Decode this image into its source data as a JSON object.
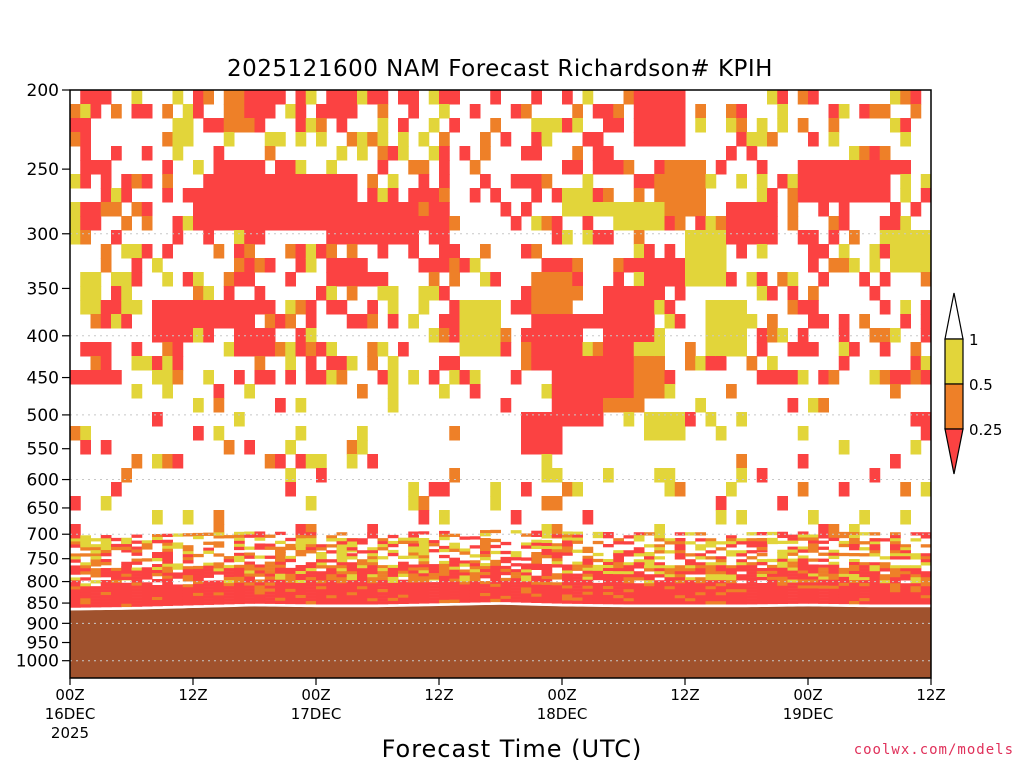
{
  "chart_data": {
    "type": "heatmap",
    "title": "2025121600 NAM Forecast Richardson# KPIH",
    "xlabel": "Forecast Time (UTC)",
    "ylabel": "",
    "y_axis": {
      "scale": "log",
      "inverted": true,
      "range": [
        1050,
        200
      ],
      "ticks": [
        200,
        250,
        300,
        350,
        400,
        450,
        500,
        550,
        600,
        650,
        700,
        750,
        800,
        850,
        900,
        950,
        1000
      ],
      "dotted_gridlines": [
        300,
        400,
        500,
        600,
        700,
        800,
        900,
        1000
      ]
    },
    "x_axis": {
      "range_hours": [
        0,
        84
      ],
      "ticks": [
        {
          "hour": 0,
          "label": "00Z",
          "sub": "16DEC",
          "sub2": "2025"
        },
        {
          "hour": 12,
          "label": "12Z",
          "sub": "",
          "sub2": ""
        },
        {
          "hour": 24,
          "label": "00Z",
          "sub": "17DEC",
          "sub2": ""
        },
        {
          "hour": 36,
          "label": "12Z",
          "sub": "",
          "sub2": ""
        },
        {
          "hour": 48,
          "label": "00Z",
          "sub": "18DEC",
          "sub2": ""
        },
        {
          "hour": 60,
          "label": "12Z",
          "sub": "",
          "sub2": ""
        },
        {
          "hour": 72,
          "label": "00Z",
          "sub": "19DEC",
          "sub2": ""
        },
        {
          "hour": 84,
          "label": "12Z",
          "sub": "",
          "sub2": ""
        }
      ]
    },
    "colorbar": {
      "levels": [
        "1",
        "0.5",
        "0.25"
      ],
      "colors": {
        "above_1": "#ffffff",
        "between_0.5_1": "#e2d53a",
        "between_0.25_0.5": "#ee8028",
        "below_0.25": "#fb4242"
      }
    },
    "ground_color": "#a0522d",
    "surface_pressure_by_hour": [
      {
        "hour": 0,
        "p": 868
      },
      {
        "hour": 6,
        "p": 866
      },
      {
        "hour": 12,
        "p": 862
      },
      {
        "hour": 18,
        "p": 858
      },
      {
        "hour": 24,
        "p": 860
      },
      {
        "hour": 30,
        "p": 860
      },
      {
        "hour": 36,
        "p": 857
      },
      {
        "hour": 42,
        "p": 854
      },
      {
        "hour": 48,
        "p": 858
      },
      {
        "hour": 54,
        "p": 860
      },
      {
        "hour": 60,
        "p": 860
      },
      {
        "hour": 66,
        "p": 860
      },
      {
        "hour": 72,
        "p": 858
      },
      {
        "hour": 78,
        "p": 860
      },
      {
        "hour": 84,
        "p": 860
      }
    ],
    "regions": [
      {
        "cat": "red",
        "h": [
          9,
          18
        ],
        "p": [
          355,
          395
        ]
      },
      {
        "cat": "red",
        "h": [
          12,
          22
        ],
        "p": [
          265,
          300
        ]
      },
      {
        "cat": "red",
        "h": [
          14,
          19
        ],
        "p": [
          245,
          260
        ]
      },
      {
        "cat": "red",
        "h": [
          21,
          28
        ],
        "p": [
          250,
          295
        ]
      },
      {
        "cat": "red",
        "h": [
          26,
          34
        ],
        "p": [
          270,
          310
        ]
      },
      {
        "cat": "red",
        "h": [
          25,
          29
        ],
        "p": [
          320,
          350
        ]
      },
      {
        "cat": "red",
        "h": [
          16,
          20
        ],
        "p": [
          390,
          420
        ]
      },
      {
        "cat": "red",
        "h": [
          8,
          12
        ],
        "p": [
          370,
          400
        ]
      },
      {
        "cat": "red",
        "h": [
          45,
          50
        ],
        "p": [
          380,
          440
        ]
      },
      {
        "cat": "red",
        "h": [
          47,
          52
        ],
        "p": [
          430,
          520
        ]
      },
      {
        "cat": "red",
        "h": [
          52,
          57
        ],
        "p": [
          350,
          400
        ]
      },
      {
        "cat": "red",
        "h": [
          55,
          60
        ],
        "p": [
          200,
          230
        ]
      },
      {
        "cat": "red",
        "h": [
          56,
          60
        ],
        "p": [
          320,
          350
        ]
      },
      {
        "cat": "red",
        "h": [
          64,
          69
        ],
        "p": [
          270,
          310
        ]
      },
      {
        "cat": "red",
        "h": [
          71,
          80
        ],
        "p": [
          245,
          270
        ]
      },
      {
        "cat": "red",
        "h": [
          44,
          48
        ],
        "p": [
          500,
          550
        ]
      },
      {
        "cat": "red",
        "h": [
          25,
          28
        ],
        "p": [
          200,
          220
        ]
      },
      {
        "cat": "red",
        "h": [
          17,
          20
        ],
        "p": [
          200,
          215
        ]
      },
      {
        "cat": "red",
        "h": [
          1,
          3
        ],
        "p": [
          275,
          300
        ]
      },
      {
        "cat": "red",
        "h": [
          52,
          55
        ],
        "p": [
          400,
          470
        ]
      },
      {
        "cat": "red",
        "h": [
          82,
          84
        ],
        "p": [
          490,
          510
        ]
      },
      {
        "cat": "orange",
        "h": [
          45,
          49
        ],
        "p": [
          340,
          380
        ]
      },
      {
        "cat": "orange",
        "h": [
          50,
          56
        ],
        "p": [
          420,
          500
        ]
      },
      {
        "cat": "orange",
        "h": [
          53,
          58
        ],
        "p": [
          420,
          470
        ]
      },
      {
        "cat": "orange",
        "h": [
          15,
          18
        ],
        "p": [
          200,
          225
        ]
      },
      {
        "cat": "orange",
        "h": [
          58,
          62
        ],
        "p": [
          240,
          280
        ]
      },
      {
        "cat": "orange",
        "h": [
          23,
          26
        ],
        "p": [
          280,
          300
        ]
      },
      {
        "cat": "orange",
        "h": [
          44,
          47
        ],
        "p": [
          400,
          440
        ]
      },
      {
        "cat": "yellow",
        "h": [
          53,
          58
        ],
        "p": [
          270,
          300
        ]
      },
      {
        "cat": "yellow",
        "h": [
          56,
          60
        ],
        "p": [
          500,
          540
        ]
      },
      {
        "cat": "yellow",
        "h": [
          60,
          64
        ],
        "p": [
          300,
          350
        ]
      },
      {
        "cat": "yellow",
        "h": [
          1,
          3
        ],
        "p": [
          340,
          370
        ]
      },
      {
        "cat": "yellow",
        "h": [
          62,
          66
        ],
        "p": [
          360,
          420
        ]
      },
      {
        "cat": "yellow",
        "h": [
          80,
          84
        ],
        "p": [
          300,
          330
        ]
      },
      {
        "cat": "yellow",
        "h": [
          38,
          42
        ],
        "p": [
          360,
          420
        ]
      },
      {
        "cat": "yellow",
        "h": [
          48,
          51
        ],
        "p": [
          260,
          290
        ]
      }
    ],
    "ground_band_layers": [
      {
        "cat": "red",
        "offset": [
          0,
          30
        ]
      },
      {
        "cat": "orange",
        "offset": [
          30,
          45
        ]
      },
      {
        "cat": "yellow",
        "offset": [
          45,
          65
        ]
      }
    ]
  },
  "credit": "coolwx.com/models"
}
